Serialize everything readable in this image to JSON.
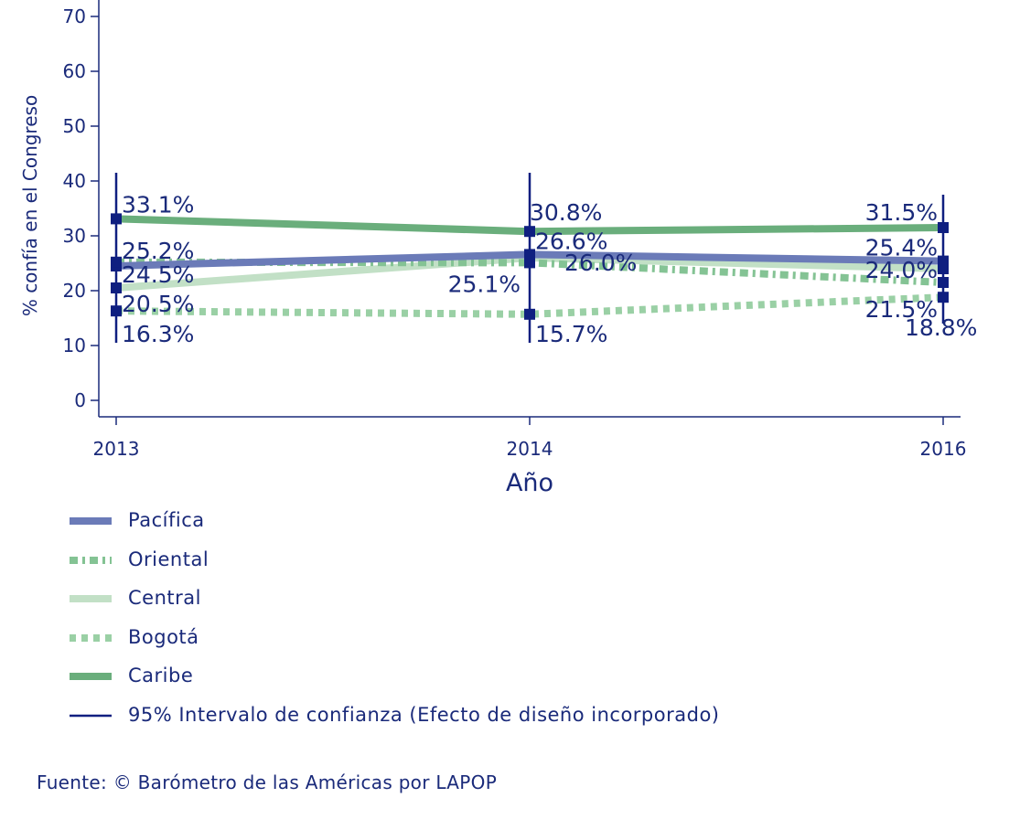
{
  "chart_data": {
    "type": "line",
    "x": [
      "2013",
      "2014",
      "2016"
    ],
    "ylabel": "% confía en el Congreso",
    "xlabel": "Año",
    "ylim": [
      0,
      72
    ],
    "yticks": [
      "0",
      "10",
      "20",
      "30",
      "40",
      "50",
      "60",
      "70"
    ],
    "series": [
      {
        "name": "Pacífica",
        "values": [
          24.5,
          26.6,
          25.4
        ],
        "labels": [
          "24.5%",
          "26.6%",
          "25.4%"
        ],
        "ci": [
          [
            19,
            30
          ],
          [
            21.5,
            31.5
          ],
          [
            20,
            30.5
          ]
        ],
        "color": "#6b7bb8",
        "style": "solid"
      },
      {
        "name": "Oriental",
        "values": [
          25.2,
          25.1,
          21.5
        ],
        "labels": [
          "25.2%",
          "25.1%",
          "21.5%"
        ],
        "ci": [
          [
            18,
            32
          ],
          [
            18.5,
            31.5
          ],
          [
            14,
            28
          ]
        ],
        "color": "#84c394",
        "style": "dashdot"
      },
      {
        "name": "Central",
        "values": [
          20.5,
          26.0,
          24.0
        ],
        "labels": [
          "20.5%",
          "26.0%",
          "24.0%"
        ],
        "ci": [
          [
            14,
            27
          ],
          [
            20.5,
            32
          ],
          [
            18,
            29.5
          ]
        ],
        "color": "#c2e0c6",
        "style": "solid"
      },
      {
        "name": "Bogotá",
        "values": [
          16.3,
          15.7,
          18.8
        ],
        "labels": [
          "16.3%",
          "15.7%",
          "18.8%"
        ],
        "ci": [
          [
            10.5,
            22
          ],
          [
            10.5,
            21
          ],
          [
            14.5,
            24
          ]
        ],
        "color": "#9ad0a5",
        "style": "dotted"
      },
      {
        "name": "Caribe",
        "values": [
          33.1,
          30.8,
          31.5
        ],
        "labels": [
          "33.1%",
          "30.8%",
          "31.5%"
        ],
        "ci": [
          [
            24.5,
            41.5
          ],
          [
            20,
            41.5
          ],
          [
            26,
            37.5
          ]
        ],
        "color": "#6aae7c",
        "style": "solid"
      }
    ],
    "ci_legend": "95% Intervalo de confianza (Efecto de diseño incorporado)",
    "ci_color": "#0f1f80",
    "grid": false,
    "legend_position": "bottom"
  },
  "source": "Fuente: © Barómetro de las Américas por LAPOP"
}
